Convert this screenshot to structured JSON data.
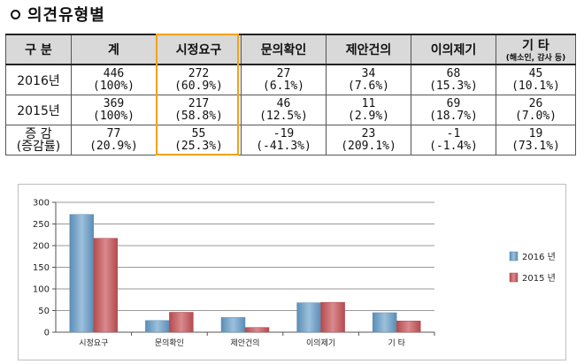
{
  "page": {
    "title": "의견유형별"
  },
  "table": {
    "header": [
      "구 분",
      "계",
      "시정요구",
      "문의확인",
      "제안건의",
      "이의제기",
      "기    타"
    ],
    "other_note": "(해소인, 감사 등)",
    "rows": [
      {
        "label": "2016년",
        "cells": [
          [
            "446",
            "(100%)"
          ],
          [
            "272",
            "(60.9%)"
          ],
          [
            "27",
            "(6.1%)"
          ],
          [
            "34",
            "(7.6%)"
          ],
          [
            "68",
            "(15.3%)"
          ],
          [
            "45",
            "(10.1%)"
          ]
        ]
      },
      {
        "label": "2015년",
        "cells": [
          [
            "369",
            "(100%)"
          ],
          [
            "217",
            "(58.8%)"
          ],
          [
            "46",
            "(12.5%)"
          ],
          [
            "11",
            "(2.9%)"
          ],
          [
            "69",
            "(18.7%)"
          ],
          [
            "26",
            "(7.0%)"
          ]
        ]
      },
      {
        "label": [
          "증 감",
          "(증감률)"
        ],
        "cells": [
          [
            "77",
            "(20.9%)"
          ],
          [
            "55",
            "(25.3%)"
          ],
          [
            "-19",
            "(-41.3%)"
          ],
          [
            "23",
            "(209.1%)"
          ],
          [
            "-1",
            "(-1.4%)"
          ],
          [
            "19",
            "(73.1%)"
          ]
        ]
      }
    ],
    "highlight_color": "#f3a21a"
  },
  "chart_data": {
    "type": "bar",
    "categories": [
      "시정요구",
      "문의확인",
      "제안건의",
      "이의제기",
      "기   타"
    ],
    "series": [
      {
        "name": "2016 년",
        "values": [
          272,
          27,
          34,
          68,
          45
        ],
        "color": "#5b8db6"
      },
      {
        "name": "2015 년",
        "values": [
          217,
          46,
          11,
          69,
          26
        ],
        "color": "#b44b4f"
      }
    ],
    "yticks": [
      0,
      50,
      100,
      150,
      200,
      250,
      300
    ],
    "ylim": [
      0,
      300
    ],
    "grid": true,
    "legend": "right"
  }
}
